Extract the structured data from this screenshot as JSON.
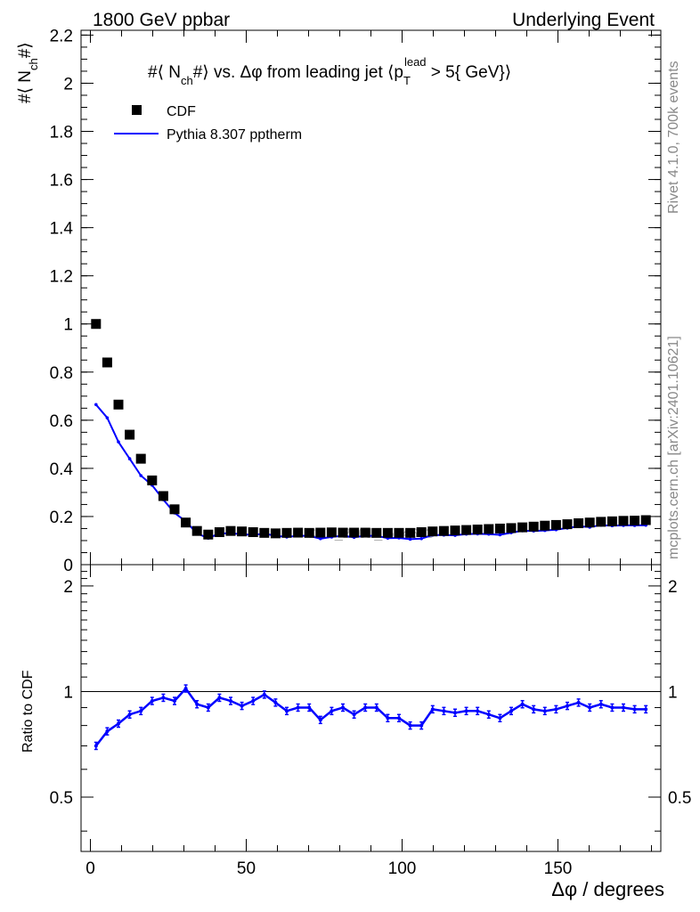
{
  "header": {
    "left_title": "1800 GeV ppbar",
    "right_title": "Underlying Event"
  },
  "side_labels": {
    "rivet": "Rivet 4.1.0,  700k events",
    "mcplots": "mcplots.cern.ch [arXiv:2401.10621]"
  },
  "watermark": "CDF_2001_I564673",
  "colors": {
    "data": "#000000",
    "mc": "#0000ff",
    "axis": "#000000"
  },
  "chart_data": [
    {
      "type": "scatter",
      "title": "#< N_ch #> vs. Δφ from leading jet  ( p_T^lead > 5 GeV )",
      "title_parts": {
        "a": "#⟨ N",
        "b": "ch",
        "c": "#⟩ vs. Δφ from leading jet  ⟨p",
        "d": "T",
        "e": "lead",
        "f": " > 5{ GeV}⟩"
      },
      "ylabel": "#< N_ch #>",
      "ylabel_parts": {
        "a": "#⟨ N",
        "b": "ch",
        "c": "#⟩"
      },
      "xlim": [
        -3,
        183
      ],
      "ylim": [
        0,
        2.22
      ],
      "yticks": [
        0,
        0.2,
        0.4,
        0.6,
        0.8,
        1,
        1.2,
        1.4,
        1.6,
        1.8,
        2,
        2.2
      ],
      "ytick_labels": [
        "0",
        "0.2",
        "0.4",
        "0.6",
        "0.8",
        "1",
        "1.2",
        "1.4",
        "1.6",
        "1.8",
        "2",
        "2.2"
      ],
      "legend": {
        "placement": "top-left",
        "entries": [
          "CDF",
          "Pythia 8.307 pptherm"
        ]
      },
      "x": [
        1.8,
        5.4,
        9.0,
        12.6,
        16.2,
        19.8,
        23.4,
        27.0,
        30.6,
        34.2,
        37.8,
        41.4,
        45.0,
        48.6,
        52.2,
        55.8,
        59.4,
        63.0,
        66.6,
        70.2,
        73.8,
        77.4,
        81.0,
        84.6,
        88.2,
        91.8,
        95.4,
        99.0,
        102.6,
        106.2,
        109.8,
        113.4,
        117.0,
        120.6,
        124.2,
        127.8,
        131.4,
        135.0,
        138.6,
        142.2,
        145.8,
        149.4,
        153.0,
        156.6,
        160.2,
        163.8,
        167.4,
        171.0,
        174.6,
        178.2
      ],
      "series": [
        {
          "name": "CDF",
          "values": [
            1.0,
            0.84,
            0.665,
            0.54,
            0.44,
            0.35,
            0.285,
            0.23,
            0.175,
            0.14,
            0.125,
            0.135,
            0.14,
            0.138,
            0.135,
            0.132,
            0.13,
            0.132,
            0.133,
            0.132,
            0.133,
            0.134,
            0.133,
            0.133,
            0.133,
            0.132,
            0.132,
            0.132,
            0.132,
            0.135,
            0.138,
            0.14,
            0.142,
            0.144,
            0.146,
            0.148,
            0.15,
            0.152,
            0.155,
            0.158,
            0.162,
            0.165,
            0.168,
            0.172,
            0.175,
            0.178,
            0.18,
            0.182,
            0.183,
            0.185
          ]
        },
        {
          "name": "Pythia 8.307 pptherm",
          "values": [
            0.665,
            0.61,
            0.51,
            0.44,
            0.37,
            0.33,
            0.27,
            0.215,
            0.18,
            0.13,
            0.11,
            0.13,
            0.13,
            0.127,
            0.123,
            0.129,
            0.12,
            0.115,
            0.12,
            0.12,
            0.108,
            0.115,
            0.12,
            0.114,
            0.12,
            0.12,
            0.11,
            0.111,
            0.106,
            0.108,
            0.123,
            0.123,
            0.122,
            0.127,
            0.128,
            0.127,
            0.124,
            0.133,
            0.141,
            0.14,
            0.142,
            0.145,
            0.152,
            0.159,
            0.156,
            0.164,
            0.162,
            0.163,
            0.163,
            0.164
          ]
        }
      ]
    },
    {
      "type": "line",
      "ylabel": "Ratio to CDF",
      "xlabel": "Δφ / degrees",
      "xlim": [
        -3,
        183
      ],
      "ylim": [
        0.35,
        2.3
      ],
      "xticks": [
        0,
        50,
        100,
        150
      ],
      "xtick_labels": [
        "0",
        "50",
        "100",
        "150"
      ],
      "yticks": [
        0.5,
        1,
        2
      ],
      "ytick_labels": [
        "0.5",
        "1",
        "2"
      ],
      "reference_line": 1.0,
      "x": [
        1.8,
        5.4,
        9.0,
        12.6,
        16.2,
        19.8,
        23.4,
        27.0,
        30.6,
        34.2,
        37.8,
        41.4,
        45.0,
        48.6,
        52.2,
        55.8,
        59.4,
        63.0,
        66.6,
        70.2,
        73.8,
        77.4,
        81.0,
        84.6,
        88.2,
        91.8,
        95.4,
        99.0,
        102.6,
        106.2,
        109.8,
        113.4,
        117.0,
        120.6,
        124.2,
        127.8,
        131.4,
        135.0,
        138.6,
        142.2,
        145.8,
        149.4,
        153.0,
        156.6,
        160.2,
        163.8,
        167.4,
        171.0,
        174.6,
        178.2
      ],
      "series": [
        {
          "name": "Pythia 8.307 pptherm / CDF",
          "values": [
            0.7,
            0.77,
            0.81,
            0.86,
            0.88,
            0.94,
            0.96,
            0.94,
            1.02,
            0.92,
            0.9,
            0.96,
            0.94,
            0.91,
            0.94,
            0.98,
            0.93,
            0.88,
            0.9,
            0.9,
            0.83,
            0.88,
            0.9,
            0.86,
            0.9,
            0.9,
            0.84,
            0.84,
            0.8,
            0.8,
            0.89,
            0.88,
            0.87,
            0.88,
            0.88,
            0.86,
            0.84,
            0.88,
            0.92,
            0.89,
            0.88,
            0.89,
            0.91,
            0.93,
            0.9,
            0.92,
            0.9,
            0.9,
            0.89,
            0.89
          ]
        }
      ]
    }
  ]
}
